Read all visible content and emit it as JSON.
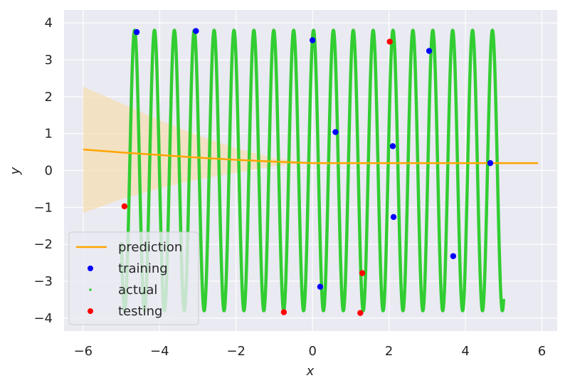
{
  "chart_data": {
    "type": "scatter",
    "title": "",
    "xlabel": "x",
    "ylabel": "y",
    "xlim": [
      -6.5,
      6.4
    ],
    "ylim": [
      -4.35,
      4.35
    ],
    "xticks": [
      -6,
      -4,
      -2,
      0,
      2,
      4,
      6
    ],
    "yticks": [
      -4,
      -3,
      -2,
      -1,
      0,
      1,
      2,
      3,
      4
    ],
    "grid": true,
    "legend_position": "bottom-left",
    "actual": {
      "name": "actual",
      "color": "#32cd32",
      "x_range": [
        -5,
        5
      ],
      "amplitude": 3.8,
      "period": 0.52,
      "phase": 1.26
    },
    "series": [
      {
        "name": "prediction",
        "type": "line",
        "color": "#ffa500",
        "x": [
          -6,
          -5,
          -4,
          -3,
          -2,
          -1,
          0,
          1,
          2,
          3,
          4,
          5,
          5.9
        ],
        "values": [
          0.57,
          0.49,
          0.42,
          0.35,
          0.29,
          0.24,
          0.2,
          0.2,
          0.2,
          0.2,
          0.2,
          0.2,
          0.2
        ],
        "band": {
          "color": "#f5deb3",
          "upper": [
            2.27,
            1.82,
            1.36,
            0.95,
            0.6,
            0.33,
            0.2
          ],
          "lower": [
            -1.15,
            -0.78,
            -0.48,
            -0.24,
            -0.06,
            0.12,
            0.2
          ]
        }
      },
      {
        "name": "training",
        "type": "scatter",
        "color": "#0000ff",
        "x": [
          -4.6,
          -3.05,
          0.0,
          0.6,
          2.1,
          2.12,
          3.05,
          3.68,
          4.65,
          0.2
        ],
        "values": [
          3.75,
          3.78,
          3.53,
          1.04,
          0.66,
          -1.26,
          3.24,
          -2.32,
          0.2,
          -3.15
        ]
      },
      {
        "name": "actual",
        "type": "scatter",
        "color": "#32cd32"
      },
      {
        "name": "testing",
        "type": "scatter",
        "color": "#ff0000",
        "x": [
          -4.92,
          -0.75,
          1.25,
          1.3,
          2.02
        ],
        "values": [
          -0.97,
          -3.84,
          -3.86,
          -2.78,
          3.49
        ]
      }
    ]
  }
}
